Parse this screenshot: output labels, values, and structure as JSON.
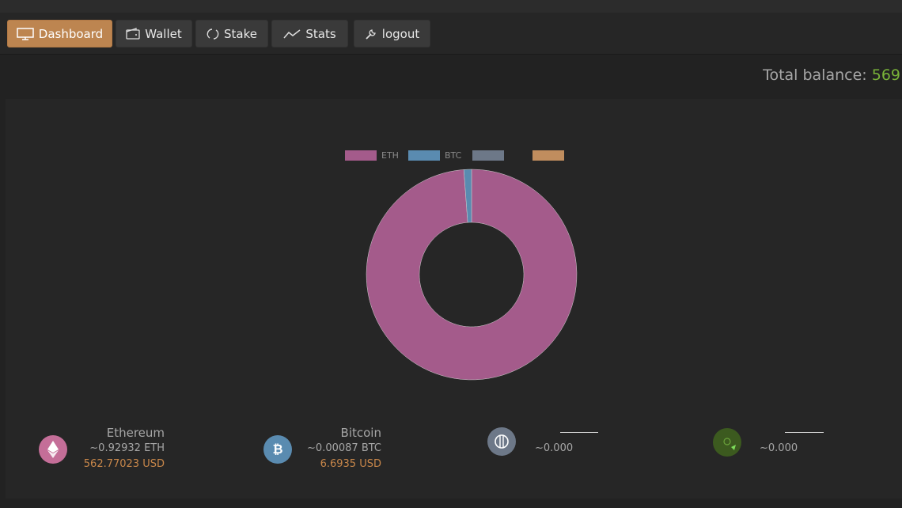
{
  "nav": {
    "dashboard": "Dashboard",
    "wallet": "Wallet",
    "stake": "Stake",
    "stats": "Stats",
    "logout": "logout"
  },
  "balance": {
    "label": "Total balance: ",
    "value": "569"
  },
  "chart_data": {
    "type": "pie",
    "legend": [
      {
        "label": "ETH",
        "color": "#a45b8b"
      },
      {
        "label": "BTC",
        "color": "#5a8bb0"
      },
      {
        "label": "",
        "color": "#6d7888"
      },
      {
        "label": "",
        "color": "#c08d5e"
      }
    ],
    "labels": [
      "ETH",
      "BTC"
    ],
    "values": [
      562.77023,
      6.6935
    ],
    "colors": [
      "#a45b8b",
      "#5a8bb0"
    ],
    "donut": true
  },
  "coins": [
    {
      "name": "Ethereum",
      "amount": "~0.92932 ETH",
      "usd": "562.77023 USD",
      "icon": "ethereum-icon",
      "color": "#c46e98"
    },
    {
      "name": "Bitcoin",
      "amount": "~0.00087 BTC",
      "usd": "6.6935 USD",
      "icon": "bitcoin-icon",
      "color": "#5a8bb0"
    },
    {
      "name": "",
      "amount": "~0.000",
      "usd": "",
      "icon": "coin-icon",
      "color": "#6d7888"
    },
    {
      "name": "",
      "amount": "~0.000",
      "usd": "",
      "icon": "coin-icon",
      "color": "#3c5a1f"
    }
  ]
}
